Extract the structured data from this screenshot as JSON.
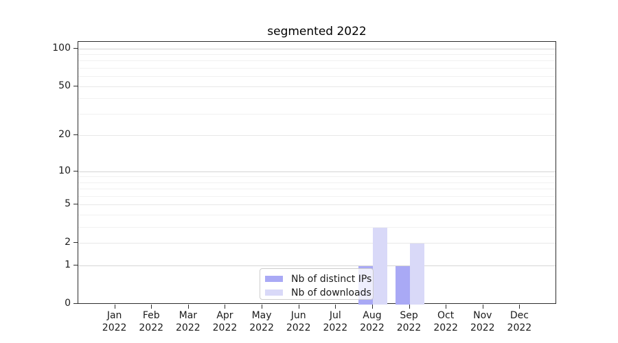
{
  "chart_data": {
    "type": "bar",
    "title": "segmented 2022",
    "categories": [
      "Jan 2022",
      "Feb 2022",
      "Mar 2022",
      "Apr 2022",
      "May 2022",
      "Jun 2022",
      "Jul 2022",
      "Aug 2022",
      "Sep 2022",
      "Oct 2022",
      "Nov 2022",
      "Dec 2022"
    ],
    "series": [
      {
        "name": "Nb of distinct IPs",
        "color": "#a9a9f5",
        "values": [
          0,
          0,
          0,
          0,
          0,
          0,
          0,
          1,
          1,
          0,
          0,
          0
        ]
      },
      {
        "name": "Nb of downloads",
        "color": "#d9d9f8",
        "values": [
          0,
          0,
          0,
          0,
          0,
          0,
          0,
          3,
          2,
          0,
          0,
          0
        ]
      }
    ],
    "yaxis": {
      "scale": "log1p",
      "major_ticks": [
        0,
        1,
        2,
        5,
        10,
        20,
        50,
        100
      ],
      "tick_labels": [
        "0",
        "1",
        "2",
        "5",
        "10",
        "20",
        "50",
        "100"
      ],
      "decade_ticks": [
        1,
        10,
        100
      ],
      "minor_ticks": [
        3,
        4,
        6,
        7,
        8,
        9,
        30,
        40,
        60,
        70,
        80,
        90
      ],
      "range": [
        0,
        100
      ]
    },
    "legend": {
      "position": "lower center"
    },
    "grid": true,
    "ylim": [
      0,
      100
    ]
  },
  "colors": {
    "bar_distinct_ips": "#a9a9f5",
    "bar_downloads": "#d9d9f8",
    "grid_decade": "#d4d4d4",
    "grid_major": "#e7e7e7",
    "grid_minor": "#f1f1f1",
    "spine": "#2b2b2b",
    "text": "#1a1a1a",
    "legend_border": "#cccccc"
  }
}
